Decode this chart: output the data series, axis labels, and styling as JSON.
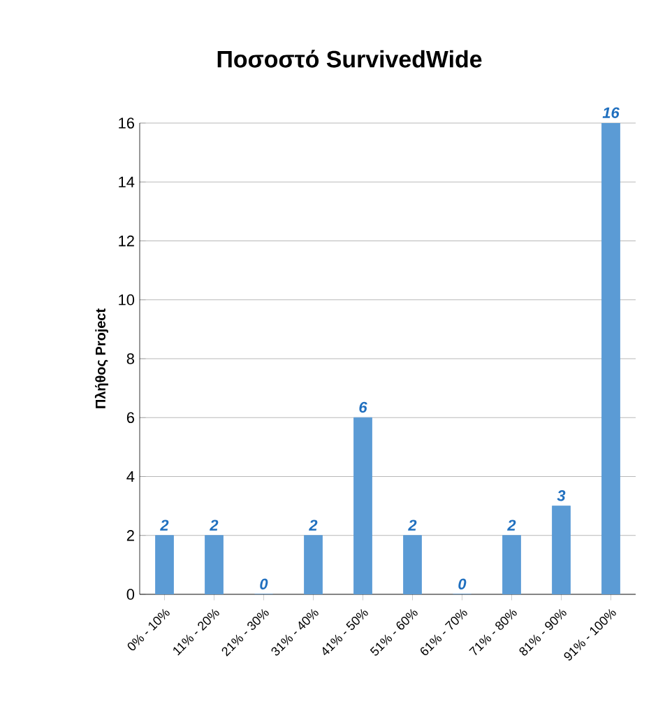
{
  "chart_data": {
    "type": "bar",
    "title": "Ποσοστό SurvivedWide",
    "ylabel": "Πλήθος Project",
    "categories": [
      "0% - 10%",
      "11% - 20%",
      "21% - 30%",
      "31% - 40%",
      "41% - 50%",
      "51% - 60%",
      "61% - 70%",
      "71% - 80%",
      "81% - 90%",
      "91% - 100%"
    ],
    "values": [
      2,
      2,
      0,
      2,
      6,
      2,
      0,
      2,
      3,
      16
    ],
    "color": "#5b9bd5",
    "ylim": [
      0,
      16
    ],
    "yticks": [
      0,
      2,
      4,
      6,
      8,
      10,
      12,
      14,
      16
    ],
    "grid": "y",
    "data_labels": true
  }
}
